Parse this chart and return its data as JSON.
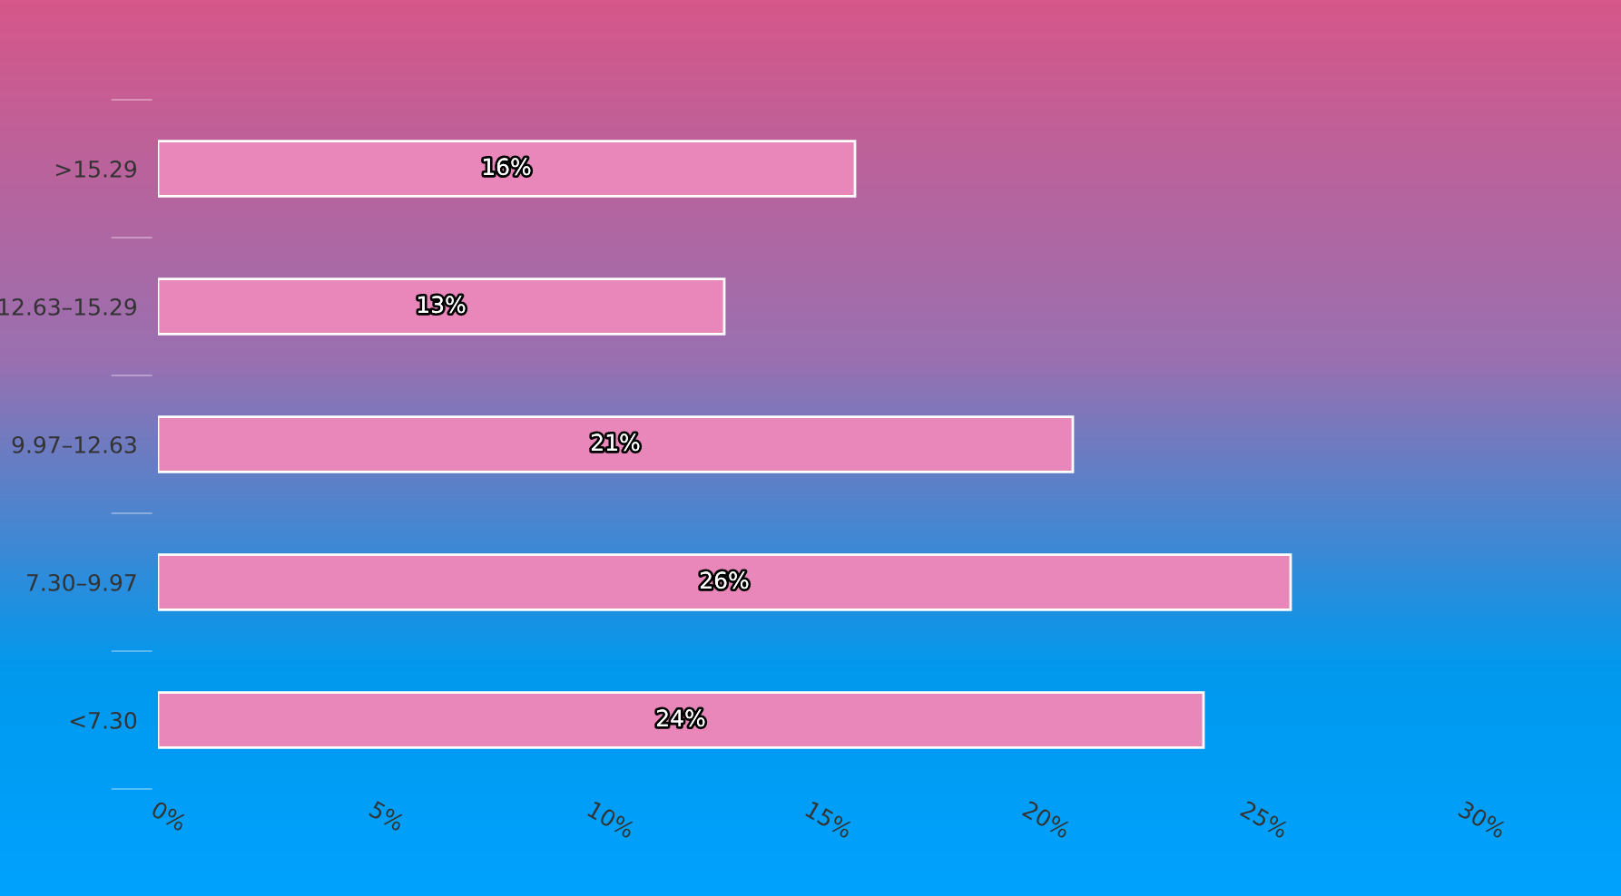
{
  "chart_data": {
    "type": "bar",
    "orientation": "horizontal",
    "categories": [
      ">15.29",
      "12.63–15.29",
      "9.97–12.63",
      "7.30–9.97",
      "<7.30"
    ],
    "values": [
      16,
      13,
      21,
      26,
      24
    ],
    "color": "#e987bb",
    "value_labels": [
      "16%",
      "13%",
      "21%",
      "26%",
      "24%"
    ],
    "xlim": [
      0,
      30
    ],
    "xticks": [
      {
        "value": 0,
        "label": "0%"
      },
      {
        "value": 5,
        "label": "5%"
      },
      {
        "value": 10,
        "label": "10%"
      },
      {
        "value": 15,
        "label": "15%"
      },
      {
        "value": 20,
        "label": "20%"
      },
      {
        "value": 25,
        "label": "25%"
      },
      {
        "value": 30,
        "label": "30%"
      }
    ],
    "grid": false,
    "legend": false
  }
}
